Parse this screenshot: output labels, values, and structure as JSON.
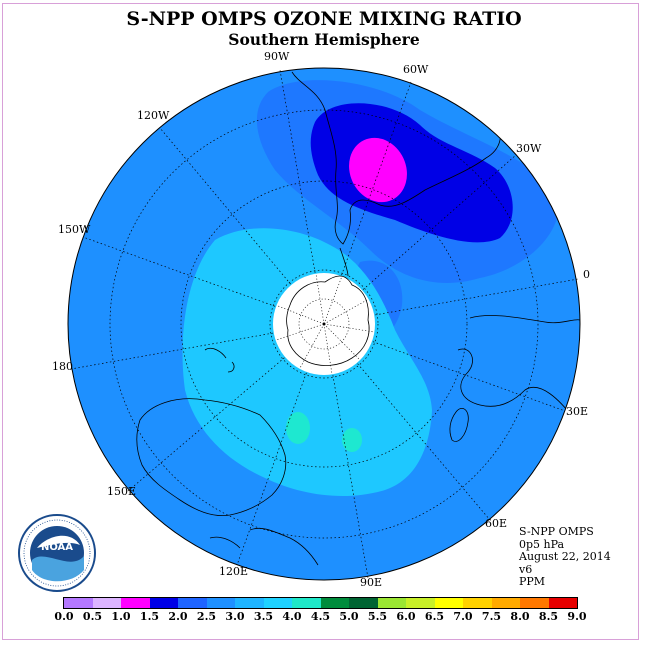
{
  "header": {
    "title": "S-NPP OMPS OZONE MIXING RATIO",
    "subtitle": "Southern Hemisphere"
  },
  "map": {
    "projection": "south polar stereographic",
    "longitude_labels": [
      "90W",
      "60W",
      "30W",
      "0",
      "30E",
      "60E",
      "90E",
      "120E",
      "150E",
      "180",
      "150W",
      "120W"
    ],
    "colors": {
      "background_field": "#1e90ff",
      "light_field": "#1ec8ff",
      "dark_field": "#0000e6",
      "peak": "#ff00ff",
      "cyan_spot": "#1ee8d0",
      "polar_cap": "#ffffff"
    }
  },
  "info": {
    "instrument": "S-NPP OMPS",
    "level": "0p5 hPa",
    "date": "August 22, 2014",
    "version": "v6",
    "units": "PPM"
  },
  "colorbar": {
    "ticks": [
      "0.0",
      "0.5",
      "1.0",
      "1.5",
      "2.0",
      "2.5",
      "3.0",
      "3.5",
      "4.0",
      "4.5",
      "5.0",
      "5.5",
      "6.0",
      "6.5",
      "7.0",
      "7.5",
      "8.0",
      "8.5",
      "9.0"
    ],
    "colors": [
      "#b478ff",
      "#dcb4ff",
      "#ff00ff",
      "#0000e6",
      "#1e64ff",
      "#1e90ff",
      "#1eb4ff",
      "#1ed2ff",
      "#1ee8c8",
      "#008c3c",
      "#006432",
      "#9be632",
      "#c8f028",
      "#ffff00",
      "#ffd200",
      "#ffaa00",
      "#ff7800",
      "#e60000",
      "#8b4513"
    ]
  },
  "logo": {
    "text": "NOAA",
    "ring_text": "NATIONAL OCEANIC AND ATMOSPHERIC ADMINISTRATION · U.S. DEPARTMENT OF COMMERCE"
  }
}
